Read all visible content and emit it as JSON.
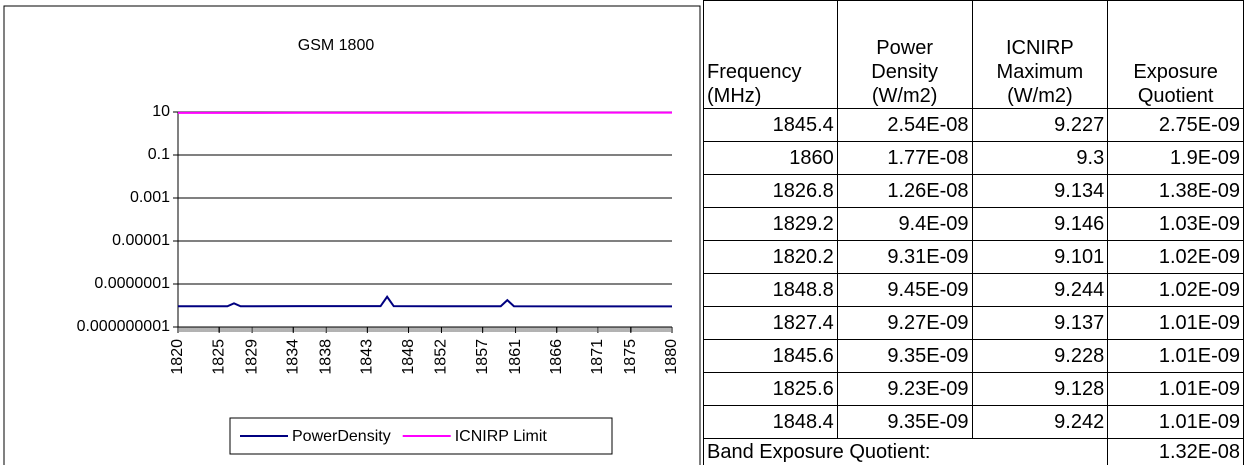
{
  "chart_data": {
    "type": "line",
    "title": "GSM 1800",
    "x": [
      1820,
      1826,
      1826.8,
      1827.6,
      1835,
      1844.6,
      1845.4,
      1846.2,
      1852,
      1859.2,
      1860,
      1860.8,
      1870,
      1880
    ],
    "xlim": [
      1820,
      1880
    ],
    "xticks": [
      1820,
      1825,
      1829,
      1834,
      1838,
      1843,
      1848,
      1852,
      1857,
      1861,
      1866,
      1871,
      1875,
      1880
    ],
    "ylim": [
      1e-09,
      10
    ],
    "log_y": true,
    "yticks": [
      10,
      0.1,
      0.001,
      1e-05,
      {
        "value": 1e-07,
        "label": "0.0000001"
      },
      {
        "value": 1e-09,
        "label": "0.000000001"
      }
    ],
    "grid": true,
    "legend": "bottom",
    "series": [
      {
        "name": "PowerDensity",
        "color": "#000080",
        "values": [
          9.2e-09,
          9.2e-09,
          1.26e-08,
          9.2e-09,
          9.3e-09,
          9.3e-09,
          2.54e-08,
          9.3e-09,
          9.2e-09,
          9.2e-09,
          1.77e-08,
          9.2e-09,
          9.1e-09,
          9.1e-09
        ]
      },
      {
        "name": "ICNIRP Limit",
        "color": "#ff00ff",
        "values": [
          9.1,
          9.13,
          9.134,
          9.138,
          9.175,
          9.223,
          9.227,
          9.231,
          9.26,
          9.296,
          9.3,
          9.304,
          9.35,
          9.4
        ]
      }
    ]
  },
  "table": {
    "header": [
      [
        "Frequency",
        "(MHz)"
      ],
      [
        "Power",
        "Density",
        "(W/m2)"
      ],
      [
        "ICNIRP",
        "Maximum",
        "(W/m2)"
      ],
      [
        "Exposure",
        "Quotient"
      ]
    ],
    "rows": [
      [
        1845.4,
        "2.54E-08",
        9.227,
        "2.75E-09"
      ],
      [
        1860,
        "1.77E-08",
        9.3,
        "1.9E-09"
      ],
      [
        1826.8,
        "1.26E-08",
        9.134,
        "1.38E-09"
      ],
      [
        1829.2,
        "9.4E-09",
        9.146,
        "1.03E-09"
      ],
      [
        1820.2,
        "9.31E-09",
        9.101,
        "1.02E-09"
      ],
      [
        1848.8,
        "9.45E-09",
        9.244,
        "1.02E-09"
      ],
      [
        1827.4,
        "9.27E-09",
        9.137,
        "1.01E-09"
      ],
      [
        1845.6,
        "9.35E-09",
        9.228,
        "1.01E-09"
      ],
      [
        1825.6,
        "9.23E-09",
        9.128,
        "1.01E-09"
      ],
      [
        1848.4,
        "9.35E-09",
        9.242,
        "1.01E-09"
      ]
    ],
    "footer": {
      "label": "Band Exposure Quotient:",
      "value": "1.32E-08"
    }
  }
}
